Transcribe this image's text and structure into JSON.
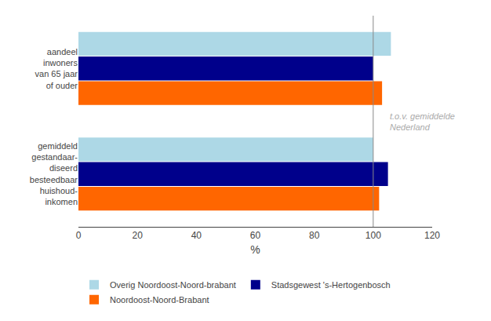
{
  "chart_data": {
    "type": "bar",
    "orientation": "horizontal",
    "categories": [
      "aandeel\ninwoners\nvan 65 jaar\nof ouder",
      "gemiddeld\ngestandaar-\ndiseerd\nbesteedbaar\nhuishoud-\ninkomen"
    ],
    "series": [
      {
        "name": "Overig Noordoost-Noord-brabant",
        "color": "#ADD8E6",
        "values": [
          106,
          100
        ]
      },
      {
        "name": "Stadsgewest 's-Hertogenbosch",
        "color": "#00008B",
        "values": [
          100,
          105
        ]
      },
      {
        "name": "Noordoost-Noord-Brabant",
        "color": "#FF6600",
        "values": [
          103,
          102
        ]
      }
    ],
    "xlim": [
      0,
      120
    ],
    "xticks": [
      0,
      20,
      40,
      60,
      80,
      100,
      120
    ],
    "xlabel": "%",
    "grid": false,
    "legend": "bottom",
    "reference_line": {
      "x": 100
    },
    "annotations": [
      {
        "text": "t.o.v. gemiddelde\nNederland",
        "x": 105,
        "color": "#aaaaaa"
      }
    ]
  }
}
